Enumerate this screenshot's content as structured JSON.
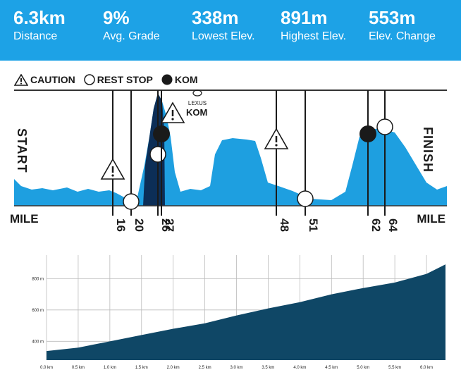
{
  "stats": [
    {
      "value": "6.3km",
      "label": "Distance"
    },
    {
      "value": "9%",
      "label": "Avg. Grade"
    },
    {
      "value": "338m",
      "label": "Lowest Elev."
    },
    {
      "value": "891m",
      "label": "Highest Elev."
    },
    {
      "value": "553m",
      "label": "Elev. Change"
    }
  ],
  "legend": {
    "caution": "CAUTION",
    "rest_stop": "REST STOP",
    "kom": "KOM"
  },
  "route_profile": {
    "start_label": "START",
    "finish_label": "FINISH",
    "mile_left": "MILE",
    "mile_right": "MILE",
    "sponsor": "LEXUS",
    "kom_label": "KOM",
    "markers": [
      {
        "mile": "16",
        "type": "caution"
      },
      {
        "mile": "20",
        "type": "rest-stop"
      },
      {
        "mile": "26",
        "type": "rest-stop"
      },
      {
        "mile": "27",
        "type": "kom"
      },
      {
        "mile": "48",
        "type": "caution"
      },
      {
        "mile": "51",
        "type": "rest-stop"
      },
      {
        "mile": "62",
        "type": "kom"
      },
      {
        "mile": "64",
        "type": "rest-stop"
      }
    ]
  },
  "colors": {
    "stats_bar": "#1da2e6",
    "profile_fill": "#1e9fe0",
    "climb_fill": "#0c2e57",
    "elevation_fill": "#0f4766"
  },
  "chart_data": {
    "type": "area",
    "x": [
      0,
      0.5,
      1.0,
      1.5,
      2.0,
      2.5,
      3.0,
      3.5,
      4.0,
      4.5,
      5.0,
      5.5,
      6.0,
      6.3
    ],
    "y": [
      338,
      360,
      400,
      440,
      480,
      515,
      565,
      610,
      650,
      700,
      740,
      775,
      830,
      891
    ],
    "x_tick_labels": [
      "0.0 km",
      "0.5 km",
      "1.0 km",
      "1.5 km",
      "2.0 km",
      "2.5 km",
      "3.0 km",
      "3.5 km",
      "4.0 km",
      "4.5 km",
      "5.0 km",
      "5.5 km",
      "6.0 km"
    ],
    "x_ticks": [
      0,
      0.5,
      1.0,
      1.5,
      2.0,
      2.5,
      3.0,
      3.5,
      4.0,
      4.5,
      5.0,
      5.5,
      6.0
    ],
    "y_tick_labels": [
      "400 m",
      "600 m",
      "800 m"
    ],
    "y_ticks": [
      400,
      600,
      800
    ],
    "xlim": [
      0,
      6.3
    ],
    "ylim": [
      280,
      950
    ],
    "grid": true,
    "xlabel": "",
    "ylabel": "",
    "title": ""
  }
}
